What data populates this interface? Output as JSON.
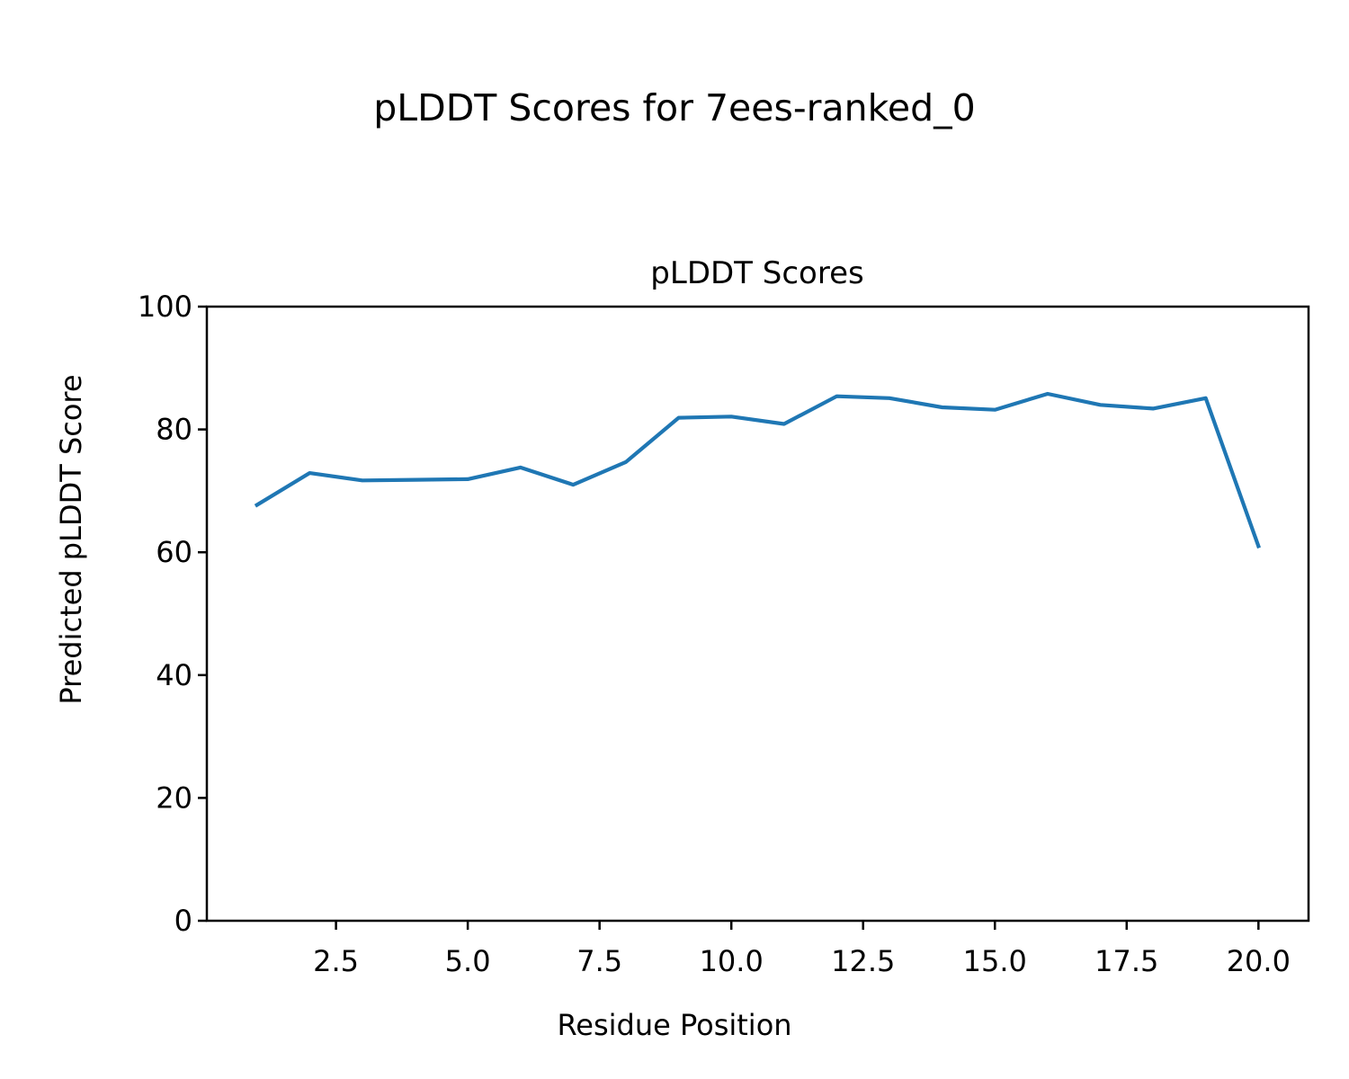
{
  "figure_title": "pLDDT Scores for 7ees-ranked_0",
  "chart_data": {
    "type": "line",
    "title": "pLDDT Scores",
    "xlabel": "Residue Position",
    "ylabel": "Predicted pLDDT Score",
    "xlim": [
      0.05,
      20.95
    ],
    "ylim": [
      0,
      100
    ],
    "xticks": [
      "2.5",
      "5.0",
      "7.5",
      "10.0",
      "12.5",
      "15.0",
      "17.5",
      "20.0"
    ],
    "xtick_values": [
      2.5,
      5.0,
      7.5,
      10.0,
      12.5,
      15.0,
      17.5,
      20.0
    ],
    "yticks": [
      "0",
      "20",
      "40",
      "60",
      "80",
      "100"
    ],
    "ytick_values": [
      0,
      20,
      40,
      60,
      80,
      100
    ],
    "grid": false,
    "series": [
      {
        "color": "#1f77b4",
        "x": [
          1,
          2,
          3,
          4,
          5,
          6,
          7,
          8,
          9,
          10,
          11,
          12,
          13,
          14,
          15,
          16,
          17,
          18,
          19,
          20
        ],
        "y": [
          67.7,
          72.9,
          71.7,
          71.8,
          71.9,
          73.8,
          71.0,
          74.7,
          81.9,
          82.1,
          80.9,
          85.4,
          85.1,
          83.6,
          83.2,
          85.8,
          84.0,
          83.4,
          85.1,
          61.0
        ]
      }
    ]
  }
}
